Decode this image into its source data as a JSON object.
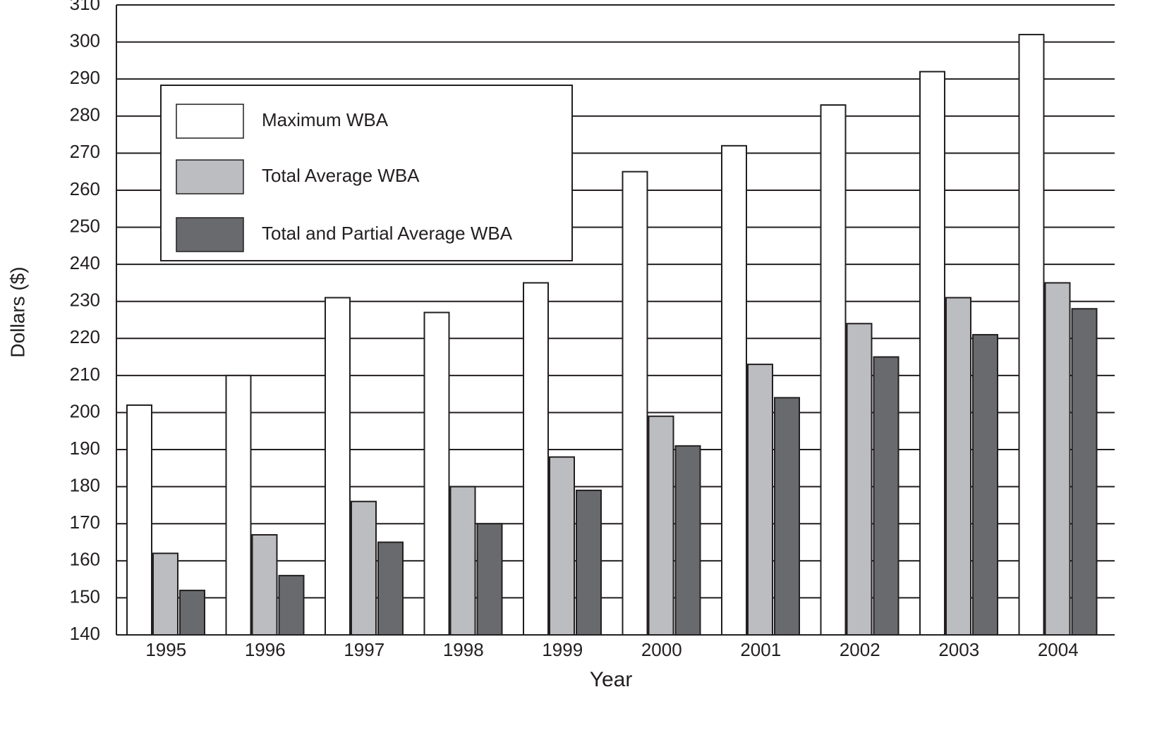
{
  "chart_data": {
    "type": "bar",
    "x_label": "Year",
    "y_label": "Dollars ($)",
    "categories": [
      "1995",
      "1996",
      "1997",
      "1998",
      "1999",
      "2000",
      "2001",
      "2002",
      "2003",
      "2004"
    ],
    "series": [
      {
        "name": "Maximum WBA",
        "color": "#ffffff",
        "values": [
          202,
          210,
          231,
          227,
          235,
          265,
          272,
          283,
          292,
          302
        ]
      },
      {
        "name": "Total Average WBA",
        "color": "#bcbdc0",
        "values": [
          162,
          167,
          176,
          180,
          188,
          199,
          213,
          224,
          231,
          235
        ]
      },
      {
        "name": "Total and Partial Average WBA",
        "color": "#696a6e",
        "values": [
          152,
          156,
          165,
          170,
          179,
          191,
          204,
          215,
          221,
          228
        ]
      }
    ],
    "ylim": [
      140,
      310
    ],
    "yticks": [
      140,
      150,
      160,
      170,
      180,
      190,
      200,
      210,
      220,
      230,
      240,
      250,
      260,
      270,
      280,
      290,
      300,
      310
    ],
    "grid": true,
    "legend": "upper left"
  }
}
